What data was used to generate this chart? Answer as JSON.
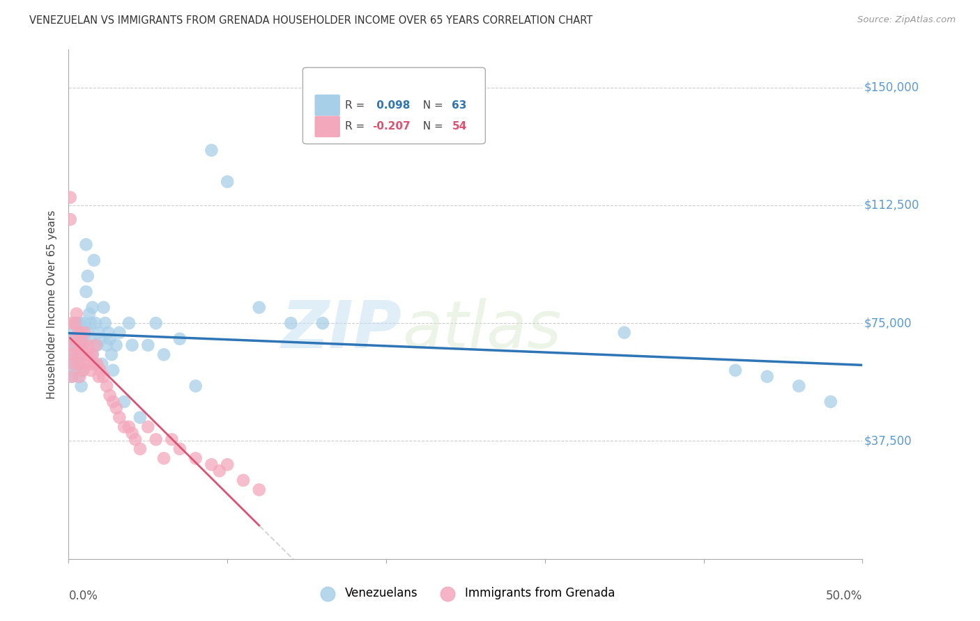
{
  "title": "VENEZUELAN VS IMMIGRANTS FROM GRENADA HOUSEHOLDER INCOME OVER 65 YEARS CORRELATION CHART",
  "source": "Source: ZipAtlas.com",
  "ylabel": "Householder Income Over 65 years",
  "ytick_labels": [
    "$150,000",
    "$112,500",
    "$75,000",
    "$37,500"
  ],
  "ytick_values": [
    150000,
    112500,
    75000,
    37500
  ],
  "ylim": [
    0,
    162000
  ],
  "xlim": [
    0.0,
    0.5
  ],
  "color_blue": "#a8cfe8",
  "color_pink": "#f4a8bc",
  "line_color_blue": "#2e75b6",
  "line_color_pink": "#e05070",
  "line_color_dashed": "#cccccc",
  "watermark_zip": "ZIP",
  "watermark_atlas": "atlas",
  "venezuelan_x": [
    0.001,
    0.001,
    0.002,
    0.002,
    0.003,
    0.003,
    0.004,
    0.004,
    0.005,
    0.005,
    0.006,
    0.006,
    0.007,
    0.007,
    0.008,
    0.008,
    0.009,
    0.009,
    0.01,
    0.01,
    0.011,
    0.011,
    0.012,
    0.012,
    0.013,
    0.013,
    0.014,
    0.015,
    0.015,
    0.016,
    0.017,
    0.018,
    0.019,
    0.02,
    0.021,
    0.022,
    0.023,
    0.024,
    0.025,
    0.026,
    0.027,
    0.028,
    0.03,
    0.032,
    0.035,
    0.038,
    0.04,
    0.045,
    0.05,
    0.055,
    0.06,
    0.07,
    0.08,
    0.09,
    0.1,
    0.12,
    0.14,
    0.16,
    0.35,
    0.42,
    0.44,
    0.46,
    0.48
  ],
  "venezuelan_y": [
    63000,
    68000,
    72000,
    58000,
    65000,
    60000,
    70000,
    62000,
    75000,
    68000,
    58000,
    62000,
    75000,
    65000,
    70000,
    55000,
    60000,
    68000,
    75000,
    65000,
    100000,
    85000,
    90000,
    72000,
    78000,
    70000,
    75000,
    65000,
    80000,
    95000,
    75000,
    68000,
    72000,
    70000,
    62000,
    80000,
    75000,
    68000,
    72000,
    70000,
    65000,
    60000,
    68000,
    72000,
    50000,
    75000,
    68000,
    45000,
    68000,
    75000,
    65000,
    70000,
    55000,
    130000,
    120000,
    80000,
    75000,
    75000,
    72000,
    60000,
    58000,
    55000,
    50000
  ],
  "grenada_x": [
    0.001,
    0.001,
    0.002,
    0.002,
    0.002,
    0.003,
    0.003,
    0.004,
    0.004,
    0.005,
    0.005,
    0.006,
    0.006,
    0.007,
    0.007,
    0.008,
    0.008,
    0.009,
    0.009,
    0.01,
    0.01,
    0.011,
    0.012,
    0.013,
    0.013,
    0.014,
    0.015,
    0.016,
    0.017,
    0.018,
    0.019,
    0.02,
    0.022,
    0.024,
    0.026,
    0.028,
    0.03,
    0.032,
    0.035,
    0.038,
    0.04,
    0.042,
    0.045,
    0.05,
    0.055,
    0.06,
    0.065,
    0.07,
    0.08,
    0.09,
    0.095,
    0.1,
    0.11,
    0.12
  ],
  "grenada_y": [
    115000,
    108000,
    65000,
    75000,
    58000,
    68000,
    62000,
    75000,
    70000,
    78000,
    65000,
    72000,
    62000,
    68000,
    58000,
    72000,
    65000,
    60000,
    68000,
    72000,
    62000,
    65000,
    68000,
    62000,
    65000,
    60000,
    65000,
    62000,
    68000,
    62000,
    58000,
    60000,
    58000,
    55000,
    52000,
    50000,
    48000,
    45000,
    42000,
    42000,
    40000,
    38000,
    35000,
    42000,
    38000,
    32000,
    38000,
    35000,
    32000,
    30000,
    28000,
    30000,
    25000,
    22000
  ]
}
